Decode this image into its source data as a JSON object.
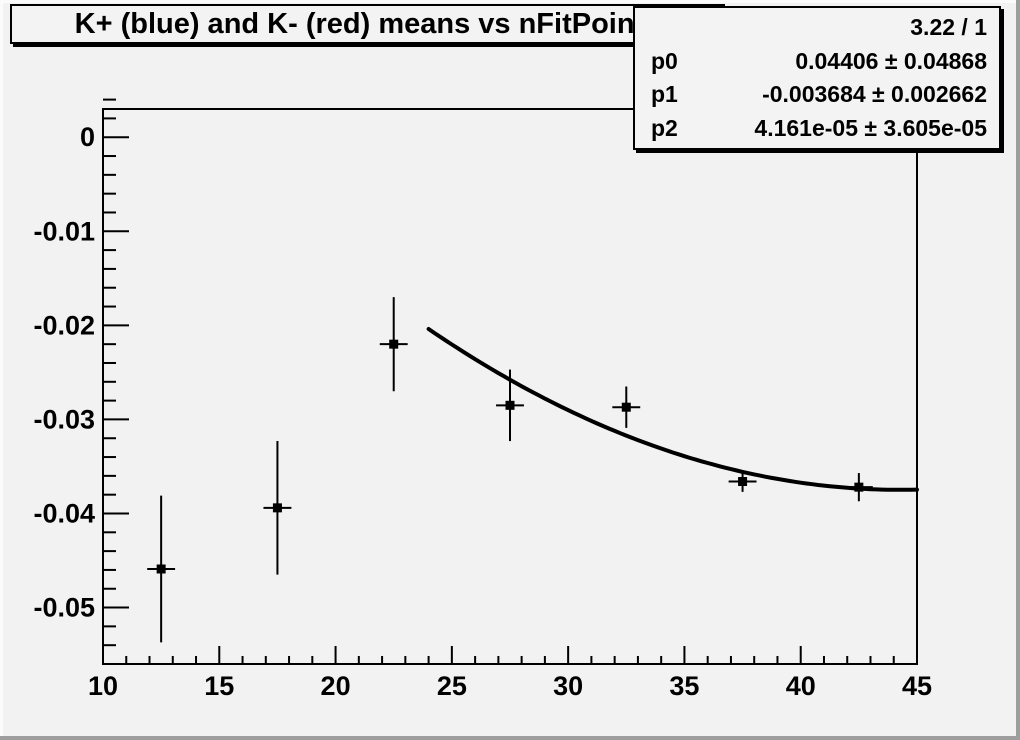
{
  "title": "K+ (blue) and K- (red) means vs nFitPoints",
  "stats_box": {
    "rows": [
      {
        "label": "",
        "value": "3.22 / 1"
      },
      {
        "label": "p0",
        "value": "0.04406 ± 0.04868"
      },
      {
        "label": "p1",
        "value": "-0.003684 ± 0.002662"
      },
      {
        "label": "p2",
        "value": "4.161e-05 ± 3.605e-05"
      }
    ]
  },
  "chart_data": {
    "type": "scatter",
    "title": "K+ (blue) and K- (red) means vs nFitPoints",
    "xlim": [
      10,
      45
    ],
    "ylim": [
      -0.056,
      0.003
    ],
    "xtick_values": [
      10,
      15,
      20,
      25,
      30,
      35,
      40,
      45
    ],
    "xtick_labels": [
      "10",
      "15",
      "20",
      "25",
      "30",
      "35",
      "40",
      "45"
    ],
    "ytick_values": [
      0,
      -0.01,
      -0.02,
      -0.03,
      -0.04,
      -0.05
    ],
    "ytick_labels": [
      "0",
      "-0.01",
      "-0.02",
      "-0.03",
      "-0.04",
      "-0.05"
    ],
    "x_minor_step": 1,
    "y_minor_step": 0.002,
    "grid": false,
    "legend_position": "none",
    "series": [
      {
        "name": "K means vs nFitPoints",
        "marker": "filled-square",
        "color": "#000000",
        "points": [
          {
            "x": 12.5,
            "y": -0.0459,
            "ey": 0.0078,
            "ex": 0.6
          },
          {
            "x": 17.5,
            "y": -0.0394,
            "ey": 0.0071,
            "ex": 0.6
          },
          {
            "x": 22.5,
            "y": -0.022,
            "ey": 0.005,
            "ex": 0.6
          },
          {
            "x": 27.5,
            "y": -0.0285,
            "ey": 0.0038,
            "ex": 0.6
          },
          {
            "x": 32.5,
            "y": -0.0287,
            "ey": 0.0022,
            "ex": 0.6
          },
          {
            "x": 37.5,
            "y": -0.0366,
            "ey": 0.0011,
            "ex": 0.6
          },
          {
            "x": 42.5,
            "y": -0.0372,
            "ey": 0.0015,
            "ex": 0.6
          }
        ]
      }
    ],
    "fit_curve": {
      "type": "pol2",
      "params": [
        0.04406,
        -0.003684,
        4.161e-05
      ],
      "x_range": [
        24,
        45
      ],
      "color": "#000000",
      "line_width": 4
    }
  },
  "colors": {
    "canvas_bg": "#f2f2f2",
    "pave_bg": "#f3f3f3",
    "axis": "#000000",
    "bevel_light": "#fbfbfb",
    "bevel_dark": "#9e9e9e"
  }
}
